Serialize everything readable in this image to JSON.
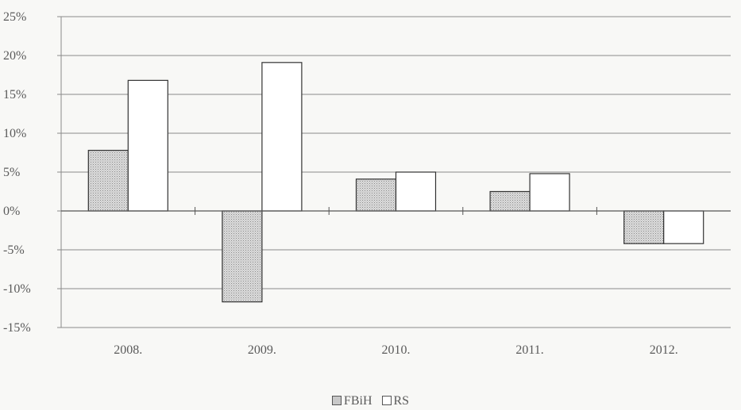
{
  "chart_data": {
    "type": "bar",
    "title": "",
    "xlabel": "",
    "ylabel": "",
    "categories": [
      "2008.",
      "2009.",
      "2010.",
      "2011.",
      "2012."
    ],
    "series": [
      {
        "name": "FBiH",
        "values": [
          7.8,
          -11.7,
          4.1,
          2.5,
          -4.2
        ],
        "color": "#c8c8c8"
      },
      {
        "name": "RS",
        "values": [
          16.8,
          19.1,
          5.0,
          4.8,
          -4.2
        ],
        "color": "#ffffff"
      }
    ],
    "ylim": [
      -15,
      25
    ],
    "yticks": [
      -15,
      -10,
      -5,
      0,
      5,
      10,
      15,
      20,
      25
    ],
    "ytick_labels": [
      "-15%",
      "-10%",
      "-5%",
      "0%",
      "5%",
      "10%",
      "15%",
      "20%",
      "25%"
    ],
    "grid": "horizontal",
    "legend": "bottom-center"
  }
}
